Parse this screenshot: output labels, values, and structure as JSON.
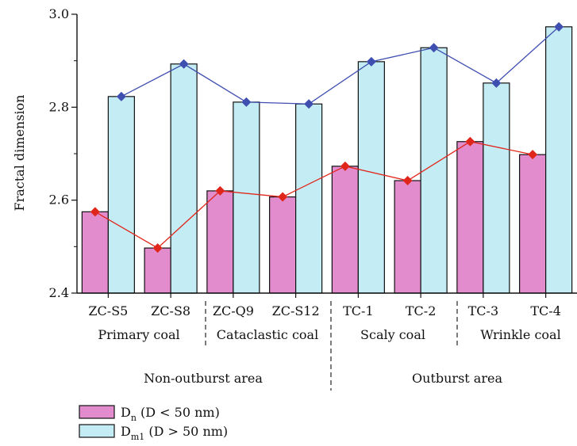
{
  "chart_data": {
    "type": "bar",
    "ylabel": "Fractal dimension",
    "ylim": [
      2.4,
      3.0
    ],
    "yticks": [
      "2.4",
      "2.6",
      "2.8",
      "3.0"
    ],
    "categories": [
      "ZC-S5",
      "ZC-S8",
      "ZC-Q9",
      "ZC-S12",
      "TC-1",
      "TC-2",
      "TC-3",
      "TC-4"
    ],
    "groups": [
      "Primary coal",
      "Cataclastic coal",
      "Scaly coal",
      "Wrinkle coal"
    ],
    "areas": [
      "Non-outburst area",
      "Outburst area"
    ],
    "series": [
      {
        "name": "Dn (D < 50 nm)",
        "name_main": "D",
        "name_sub": "n",
        "name_rest": " (D < 50 nm)",
        "color": "#e38ccd",
        "marker_color": "#e0261b",
        "values": [
          2.575,
          2.497,
          2.62,
          2.607,
          2.673,
          2.642,
          2.726,
          2.698
        ]
      },
      {
        "name": "Dm1 (D > 50 nm)",
        "name_main": "D",
        "name_sub": "m1",
        "name_rest": " (D > 50 nm)",
        "color": "#c4ecf4",
        "marker_color": "#3f4fb0",
        "values": [
          2.823,
          2.893,
          2.811,
          2.807,
          2.898,
          2.928,
          2.852,
          2.973
        ]
      }
    ]
  }
}
